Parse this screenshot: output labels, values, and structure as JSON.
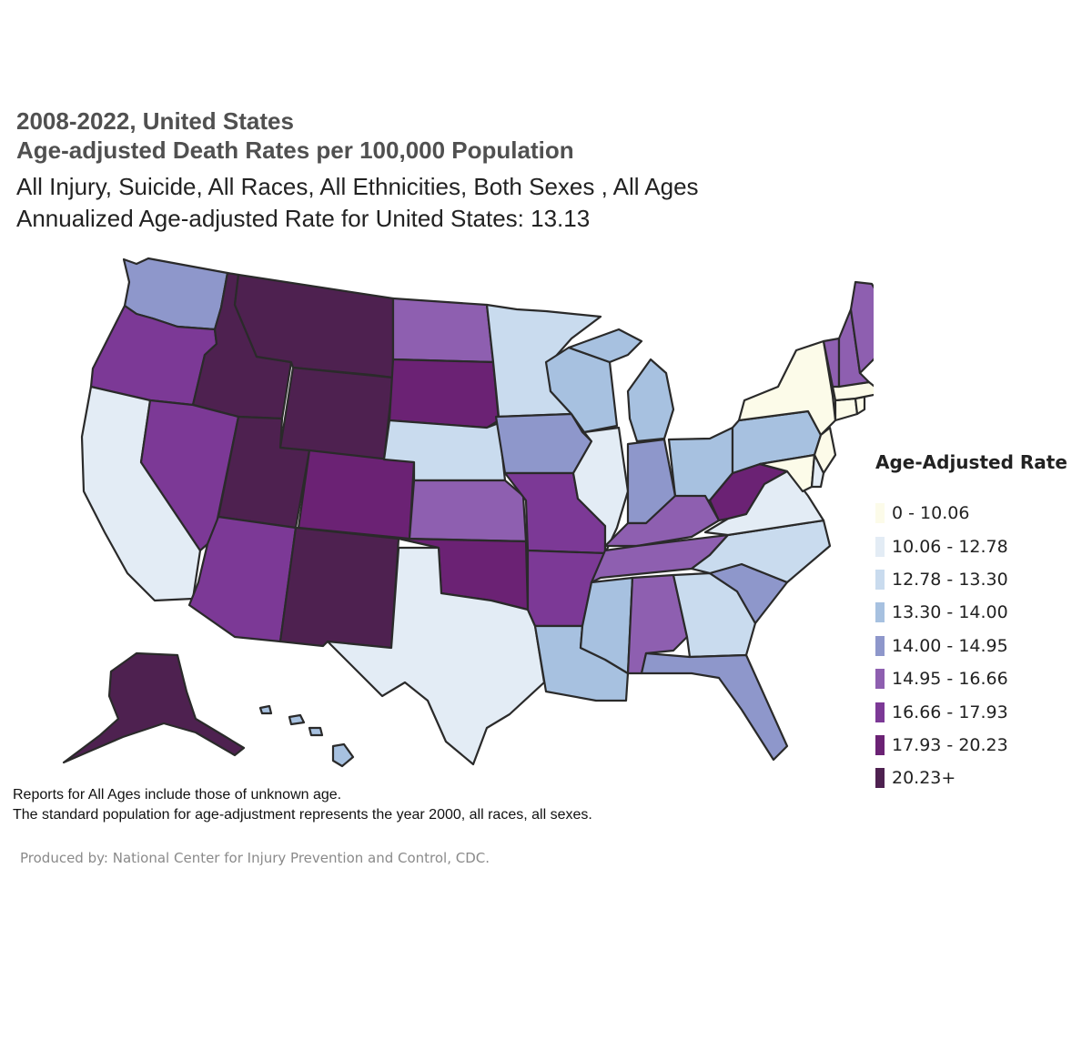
{
  "header": {
    "title_line1": "2008-2022, United States",
    "title_line2": "Age-adjusted Death Rates per 100,000 Population",
    "subtitle_line1": "All Injury, Suicide, All Races, All Ethnicities, Both Sexes , All Ages",
    "subtitle_line2": "Annualized Age-adjusted Rate for United States: 13.13"
  },
  "legend": {
    "title": "Age-Adjusted Rate",
    "classes": [
      {
        "label": "0 - 10.06",
        "color": "#fcfbe9"
      },
      {
        "label": "10.06 - 12.78",
        "color": "#e3ecf5"
      },
      {
        "label": "12.78 - 13.30",
        "color": "#c9dbee"
      },
      {
        "label": "13.30 - 14.00",
        "color": "#a7c1e0"
      },
      {
        "label": "14.00 - 14.95",
        "color": "#8e97cb"
      },
      {
        "label": "14.95 - 16.66",
        "color": "#8e5fb0"
      },
      {
        "label": "16.66 - 17.93",
        "color": "#7c3996"
      },
      {
        "label": "17.93 - 20.23",
        "color": "#6b2274"
      },
      {
        "label": "20.23+",
        "color": "#4e2150"
      }
    ]
  },
  "states": [
    {
      "id": "WA",
      "cls": 4
    },
    {
      "id": "OR",
      "cls": 6
    },
    {
      "id": "CA",
      "cls": 1
    },
    {
      "id": "ID",
      "cls": 8
    },
    {
      "id": "NV",
      "cls": 6
    },
    {
      "id": "MT",
      "cls": 8
    },
    {
      "id": "WY",
      "cls": 8
    },
    {
      "id": "UT",
      "cls": 8
    },
    {
      "id": "AZ",
      "cls": 6
    },
    {
      "id": "CO",
      "cls": 7
    },
    {
      "id": "NM",
      "cls": 8
    },
    {
      "id": "ND",
      "cls": 5
    },
    {
      "id": "SD",
      "cls": 7
    },
    {
      "id": "NE",
      "cls": 2
    },
    {
      "id": "KS",
      "cls": 5
    },
    {
      "id": "OK",
      "cls": 7
    },
    {
      "id": "TX",
      "cls": 1
    },
    {
      "id": "MN",
      "cls": 2
    },
    {
      "id": "IA",
      "cls": 4
    },
    {
      "id": "MO",
      "cls": 6
    },
    {
      "id": "AR",
      "cls": 6
    },
    {
      "id": "LA",
      "cls": 3
    },
    {
      "id": "WI",
      "cls": 3
    },
    {
      "id": "IL",
      "cls": 1
    },
    {
      "id": "MI",
      "cls": 3
    },
    {
      "id": "IN",
      "cls": 4
    },
    {
      "id": "OH",
      "cls": 3
    },
    {
      "id": "KY",
      "cls": 5
    },
    {
      "id": "TN",
      "cls": 5
    },
    {
      "id": "MS",
      "cls": 3
    },
    {
      "id": "AL",
      "cls": 5
    },
    {
      "id": "GA",
      "cls": 2
    },
    {
      "id": "FL",
      "cls": 4
    },
    {
      "id": "SC",
      "cls": 4
    },
    {
      "id": "NC",
      "cls": 2
    },
    {
      "id": "VA",
      "cls": 1
    },
    {
      "id": "WV",
      "cls": 7
    },
    {
      "id": "PA",
      "cls": 3
    },
    {
      "id": "NY",
      "cls": 0
    },
    {
      "id": "NJ",
      "cls": 0
    },
    {
      "id": "MD",
      "cls": 0
    },
    {
      "id": "DE",
      "cls": 1
    },
    {
      "id": "CT",
      "cls": 0
    },
    {
      "id": "RI",
      "cls": 0
    },
    {
      "id": "MA",
      "cls": 0
    },
    {
      "id": "VT",
      "cls": 5
    },
    {
      "id": "NH",
      "cls": 5
    },
    {
      "id": "ME",
      "cls": 5
    },
    {
      "id": "AK",
      "cls": 8
    },
    {
      "id": "HI",
      "cls": 3
    }
  ],
  "notes": {
    "line1": "Reports for All Ages include those of unknown age.",
    "line2": "The standard population for age-adjustment represents the year 2000, all races, all sexes."
  },
  "credit": "Produced by: National Center for Injury Prevention and Control, CDC."
}
